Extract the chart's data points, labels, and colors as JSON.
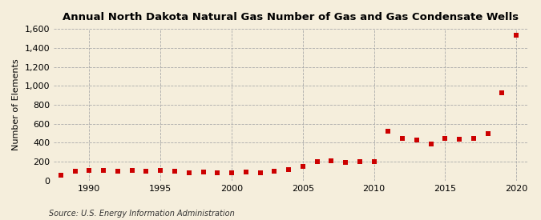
{
  "title": "Annual North Dakota Natural Gas Number of Gas and Gas Condensate Wells",
  "ylabel": "Number of Elements",
  "source": "Source: U.S. Energy Information Administration",
  "background_color": "#f5eedc",
  "plot_background_color": "#f5eedc",
  "marker_color": "#cc0000",
  "grid_color": "#aaaaaa",
  "years": [
    1988,
    1989,
    1990,
    1991,
    1992,
    1993,
    1994,
    1995,
    1996,
    1997,
    1998,
    1999,
    2000,
    2001,
    2002,
    2003,
    2004,
    2005,
    2006,
    2007,
    2008,
    2009,
    2010,
    2011,
    2012,
    2013,
    2014,
    2015,
    2016,
    2017,
    2018,
    2019,
    2020
  ],
  "values": [
    55,
    100,
    105,
    105,
    100,
    105,
    100,
    105,
    100,
    85,
    95,
    85,
    80,
    95,
    85,
    100,
    115,
    150,
    205,
    210,
    195,
    200,
    205,
    520,
    445,
    430,
    390,
    445,
    440,
    450,
    500,
    930,
    1535
  ],
  "ylim": [
    0,
    1600
  ],
  "yticks": [
    0,
    200,
    400,
    600,
    800,
    1000,
    1200,
    1400,
    1600
  ],
  "xlim": [
    1987.5,
    2020.8
  ],
  "xticks": [
    1990,
    1995,
    2000,
    2005,
    2010,
    2015,
    2020
  ]
}
